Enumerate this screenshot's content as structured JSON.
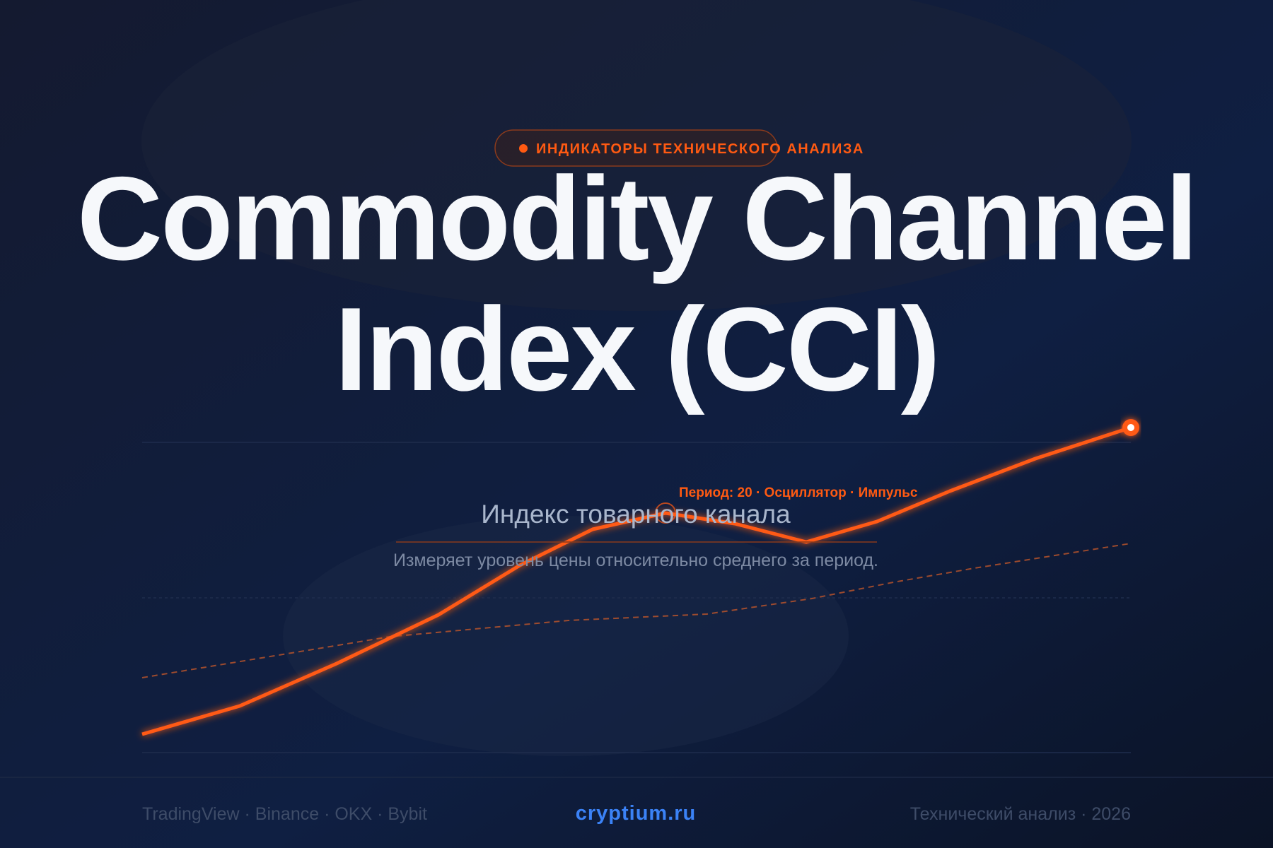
{
  "badge": "ИНДИКАТОРЫ ТЕХНИЧЕСКОГО АНАЛИЗА",
  "title": {
    "line1": "Commodity Channel",
    "line2": "Index (CCI)"
  },
  "annotation": "Период: 20 · Осциллятор · Импульс",
  "subtitle": "Индекс товарного канала",
  "description": "Измеряет уровень цены относительно среднего за период.",
  "footer": {
    "left": "TradingView · Binance · OKX · Bybit",
    "center": "cryptium.ru",
    "right": "Технический анализ · 2026"
  }
}
